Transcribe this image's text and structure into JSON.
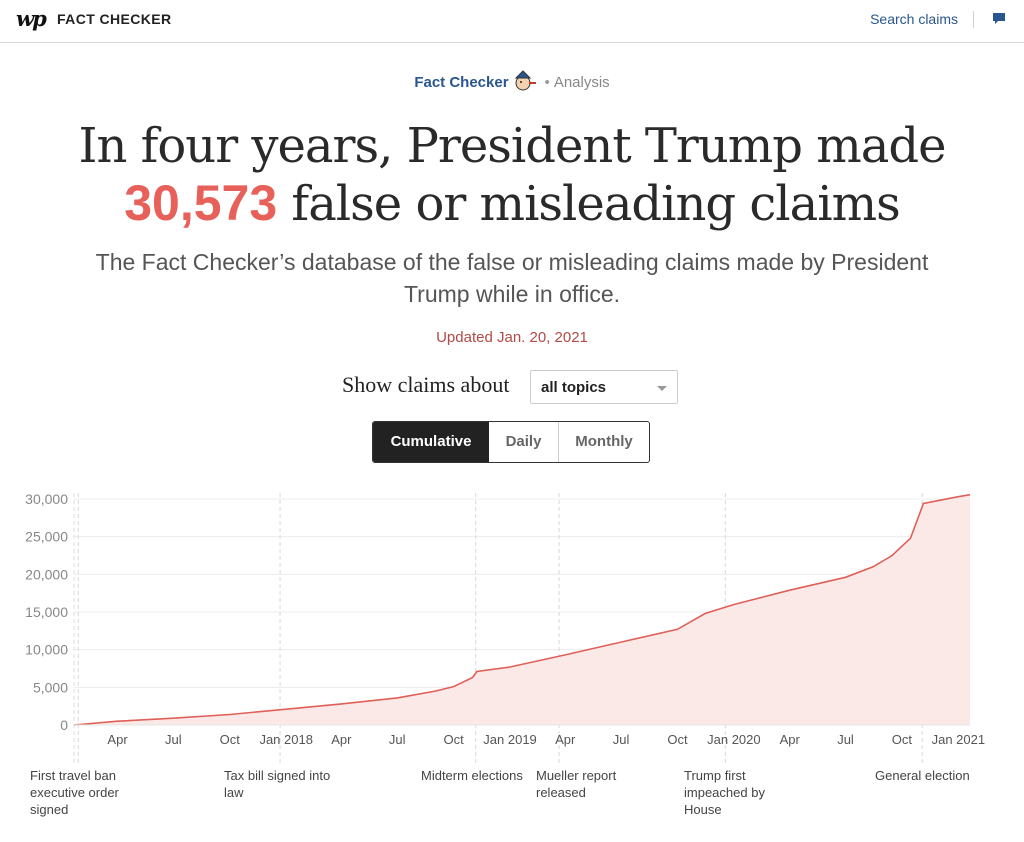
{
  "header": {
    "logo": "wp",
    "section": "FACT CHECKER",
    "search_label": "Search claims",
    "comment_icon": "comment-icon"
  },
  "kicker": {
    "brand": "Fact Checker",
    "label": "Analysis"
  },
  "headline": {
    "line1": "In four years, President Trump made",
    "count": "30,573",
    "line2_rest": "false or misleading claims"
  },
  "subhead": "The Fact Checker’s database of the false or misleading claims made by President Trump while in office.",
  "updated": "Updated Jan. 20, 2021",
  "filter": {
    "label": "Show claims about",
    "value": "all topics"
  },
  "toggle": {
    "options": [
      "Cumulative",
      "Daily",
      "Monthly"
    ],
    "active": "Cumulative"
  },
  "colors": {
    "accent": "#e8605a",
    "link": "#2a5690",
    "area_fill": "#fbe9e8",
    "line": "#e06058"
  },
  "chart_data": {
    "type": "area",
    "title": "",
    "xlabel": "",
    "ylabel": "",
    "ylim": [
      0,
      30000
    ],
    "y_ticks": [
      "0",
      "5,000",
      "10,000",
      "15,000",
      "20,000",
      "25,000",
      "30,000"
    ],
    "x_tick_labels": [
      "Apr",
      "Jul",
      "Oct",
      "Jan 2018",
      "Apr",
      "Jul",
      "Oct",
      "Jan 2019",
      "Apr",
      "Jul",
      "Oct",
      "Jan 2020",
      "Apr",
      "Jul",
      "Oct",
      "Jan 2021"
    ],
    "x_tick_dates": [
      "2017-04-01",
      "2017-07-01",
      "2017-10-01",
      "2018-01-01",
      "2018-04-01",
      "2018-07-01",
      "2018-10-01",
      "2019-01-01",
      "2019-04-01",
      "2019-07-01",
      "2019-10-01",
      "2020-01-01",
      "2020-04-01",
      "2020-07-01",
      "2020-10-01",
      "2021-01-01"
    ],
    "grid": true,
    "x": [
      "2017-01-20",
      "2017-04-01",
      "2017-07-01",
      "2017-10-01",
      "2018-01-01",
      "2018-04-01",
      "2018-07-01",
      "2018-09-01",
      "2018-10-01",
      "2018-11-01",
      "2018-11-08",
      "2019-01-01",
      "2019-04-01",
      "2019-07-01",
      "2019-10-01",
      "2019-11-15",
      "2020-01-01",
      "2020-04-01",
      "2020-07-01",
      "2020-08-15",
      "2020-09-15",
      "2020-10-15",
      "2020-11-05",
      "2021-01-01",
      "2021-01-20"
    ],
    "series": [
      {
        "values": [
          0,
          500,
          900,
          1400,
          2100,
          2800,
          3600,
          4500,
          5100,
          6300,
          7100,
          7700,
          9300,
          11000,
          12700,
          14800,
          16000,
          17900,
          19600,
          21000,
          22500,
          24800,
          29400,
          30300,
          30573
        ]
      }
    ],
    "events": [
      {
        "date": "2017-01-27",
        "label": "First travel ban executive order signed"
      },
      {
        "date": "2017-12-22",
        "label": "Tax bill signed into law"
      },
      {
        "date": "2018-11-06",
        "label": "Midterm elections"
      },
      {
        "date": "2019-03-22",
        "label": "Mueller report released"
      },
      {
        "date": "2019-12-18",
        "label": "Trump first impeached by House"
      },
      {
        "date": "2020-11-03",
        "label": "General election"
      }
    ]
  }
}
